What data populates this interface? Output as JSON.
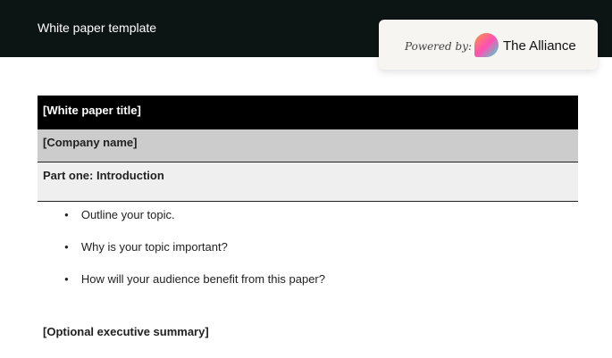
{
  "header": {
    "title": "White paper template",
    "powered_by": "Powered by:",
    "brand": "The Alliance"
  },
  "doc": {
    "title": "[White paper title]",
    "company": "[Company name]",
    "section": "Part one: Introduction",
    "bullets": [
      "Outline your topic.",
      "Why is your topic important?",
      "How will your audience benefit from this paper?"
    ],
    "optional": "[Optional executive summary]"
  }
}
